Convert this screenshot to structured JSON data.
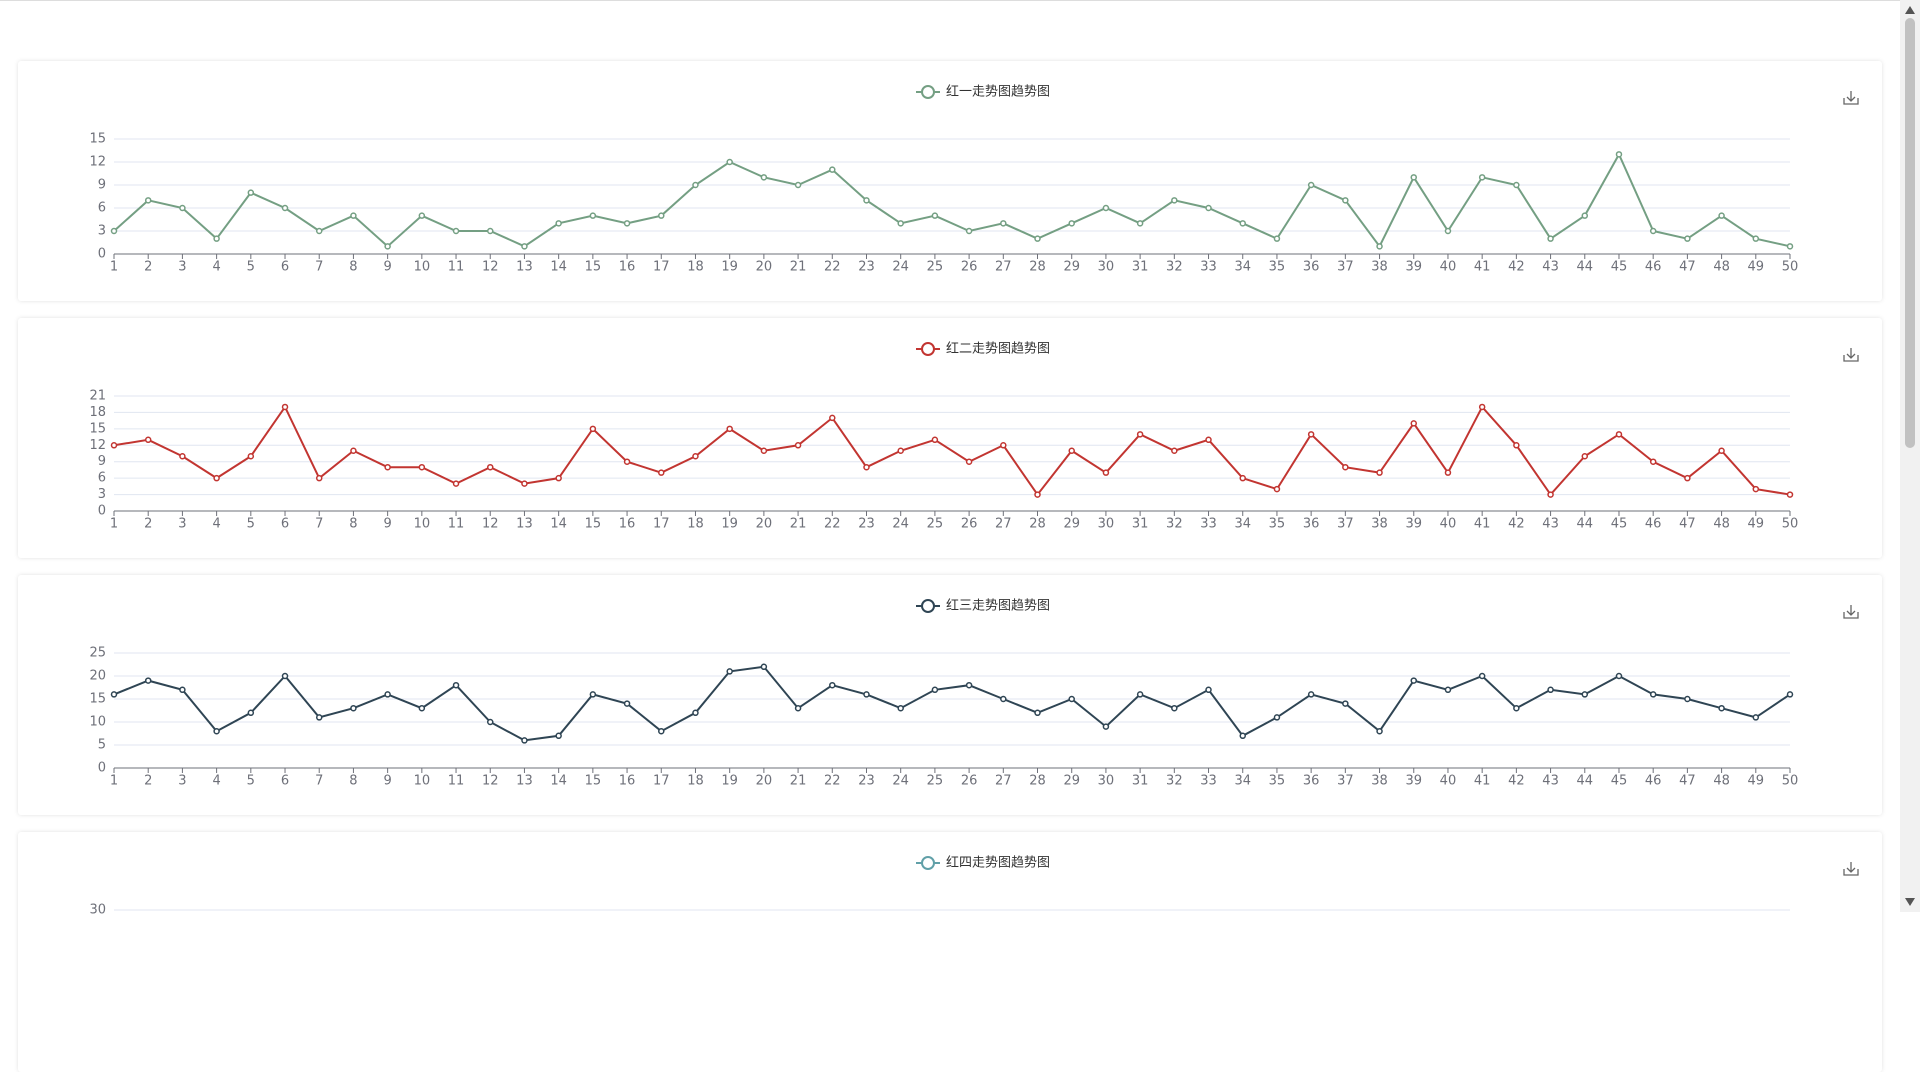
{
  "chart_data": [
    {
      "type": "line",
      "categories": [
        "1",
        "2",
        "3",
        "4",
        "5",
        "6",
        "7",
        "8",
        "9",
        "10",
        "11",
        "12",
        "13",
        "14",
        "15",
        "16",
        "17",
        "18",
        "19",
        "20",
        "21",
        "22",
        "23",
        "24",
        "25",
        "26",
        "27",
        "28",
        "29",
        "30",
        "31",
        "32",
        "33",
        "34",
        "35",
        "36",
        "37",
        "38",
        "39",
        "40",
        "41",
        "42",
        "43",
        "44",
        "45",
        "46",
        "47",
        "48",
        "49",
        "50"
      ],
      "series": [
        {
          "name": "红一走势图趋势图",
          "color": "#749f83",
          "values": [
            3,
            7,
            6,
            2,
            8,
            6,
            3,
            5,
            1,
            5,
            3,
            3,
            1,
            4,
            5,
            4,
            5,
            9,
            12,
            10,
            9,
            11,
            7,
            4,
            5,
            3,
            4,
            2,
            4,
            6,
            4,
            7,
            6,
            4,
            2,
            9,
            7,
            1,
            10,
            3,
            10,
            9,
            2,
            5,
            13,
            3,
            2,
            5,
            2,
            1
          ]
        }
      ],
      "ylim": [
        0,
        15
      ],
      "yticks": [
        0,
        3,
        6,
        9,
        12,
        15
      ],
      "grid": true
    },
    {
      "type": "line",
      "categories": [
        "1",
        "2",
        "3",
        "4",
        "5",
        "6",
        "7",
        "8",
        "9",
        "10",
        "11",
        "12",
        "13",
        "14",
        "15",
        "16",
        "17",
        "18",
        "19",
        "20",
        "21",
        "22",
        "23",
        "24",
        "25",
        "26",
        "27",
        "28",
        "29",
        "30",
        "31",
        "32",
        "33",
        "34",
        "35",
        "36",
        "37",
        "38",
        "39",
        "40",
        "41",
        "42",
        "43",
        "44",
        "45",
        "46",
        "47",
        "48",
        "49",
        "50"
      ],
      "series": [
        {
          "name": "红二走势图趋势图",
          "color": "#c23531",
          "values": [
            12,
            13,
            10,
            6,
            10,
            19,
            6,
            11,
            8,
            8,
            5,
            8,
            5,
            6,
            15,
            9,
            7,
            10,
            15,
            11,
            12,
            17,
            8,
            11,
            13,
            9,
            12,
            3,
            11,
            7,
            14,
            11,
            13,
            6,
            4,
            14,
            8,
            7,
            16,
            7,
            19,
            12,
            3,
            10,
            14,
            9,
            6,
            11,
            4,
            3
          ]
        }
      ],
      "ylim": [
        0,
        21
      ],
      "yticks": [
        0,
        3,
        6,
        9,
        12,
        15,
        18,
        21
      ],
      "grid": true
    },
    {
      "type": "line",
      "categories": [
        "1",
        "2",
        "3",
        "4",
        "5",
        "6",
        "7",
        "8",
        "9",
        "10",
        "11",
        "12",
        "13",
        "14",
        "15",
        "16",
        "17",
        "18",
        "19",
        "20",
        "21",
        "22",
        "23",
        "24",
        "25",
        "26",
        "27",
        "28",
        "29",
        "30",
        "31",
        "32",
        "33",
        "34",
        "35",
        "36",
        "37",
        "38",
        "39",
        "40",
        "41",
        "42",
        "43",
        "44",
        "45",
        "46",
        "47",
        "48",
        "49",
        "50"
      ],
      "series": [
        {
          "name": "红三走势图趋势图",
          "color": "#2f4554",
          "values": [
            16,
            19,
            17,
            8,
            12,
            20,
            11,
            13,
            16,
            13,
            18,
            10,
            6,
            7,
            16,
            14,
            8,
            12,
            21,
            22,
            13,
            18,
            16,
            13,
            17,
            18,
            15,
            12,
            15,
            9,
            16,
            13,
            17,
            7,
            11,
            16,
            14,
            8,
            19,
            17,
            20,
            13,
            17,
            16,
            20,
            16,
            15,
            13,
            11,
            16
          ]
        }
      ],
      "ylim": [
        0,
        25
      ],
      "yticks": [
        0,
        5,
        10,
        15,
        20,
        25
      ],
      "grid": true
    },
    {
      "type": "line",
      "series": [
        {
          "name": "红四走势图趋势图",
          "color": "#61a0a8",
          "values": []
        }
      ],
      "ylim": [
        0,
        30
      ],
      "yticks": [
        30
      ],
      "grid": true
    }
  ]
}
